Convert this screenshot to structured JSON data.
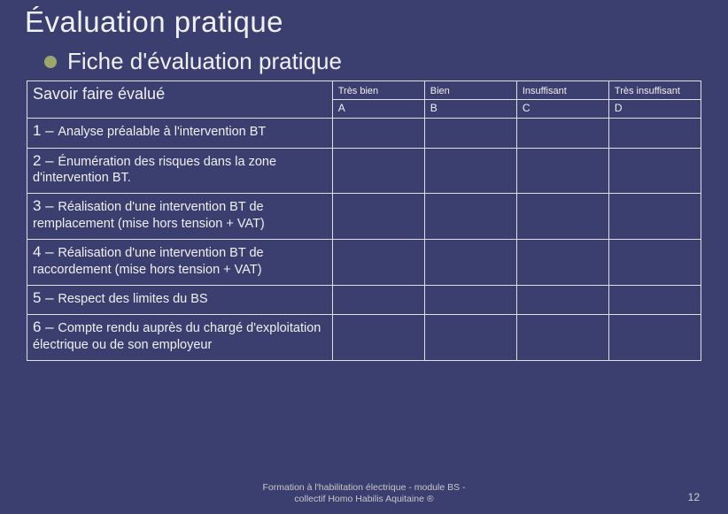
{
  "colors": {
    "background": "#3a3f70",
    "text": "#f0f0f0",
    "border": "#e0e0e0",
    "bullet": "#9ca76a",
    "footer": "#c8c8c8"
  },
  "title": "Évaluation pratique",
  "subtitle": "Fiche d'évaluation pratique",
  "table": {
    "header": {
      "skill_label": "Savoir faire évalué",
      "ratings": [
        "Très bien",
        "Bien",
        "Insuffisant",
        "Très insuffisant"
      ],
      "letters": [
        "A",
        "B",
        "C",
        "D"
      ]
    },
    "rows": [
      {
        "num": "1 – ",
        "text": "Analyse préalable à l'intervention BT"
      },
      {
        "num": "2 – ",
        "text": "Énumération des risques dans la zone d'intervention BT."
      },
      {
        "num": "3 – ",
        "text": "Réalisation d'une intervention BT de remplacement (mise hors tension + VAT)"
      },
      {
        "num": "4 – ",
        "text": "Réalisation d'une intervention BT de raccordement (mise hors tension + VAT)"
      },
      {
        "num": "5 – ",
        "text": "Respect des limites du BS"
      },
      {
        "num": "6 – ",
        "text": "Compte rendu auprès du chargé d'exploitation électrique ou de son employeur"
      }
    ]
  },
  "footer_line1": "Formation à l'habilitation électrique - module BS -",
  "footer_line2": "collectif Homo Habilis Aquitaine ®",
  "page_number": "12"
}
